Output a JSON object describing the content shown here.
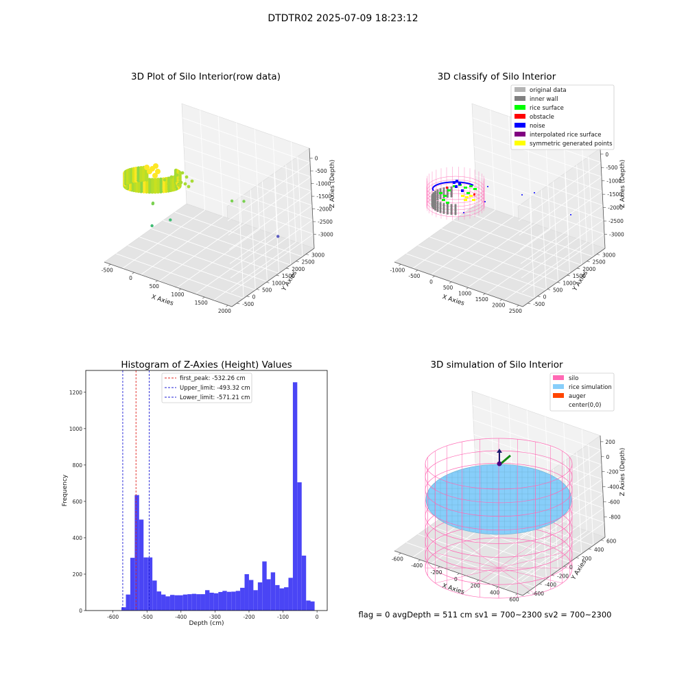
{
  "figure": {
    "suptitle": "DTDTR02 2025-07-09 18:23:12",
    "status_text": "flag = 0     avgDepth = 511 cm  sv1 = 700~2300  sv2 = 700~2300"
  },
  "colors": {
    "hist_bar": "#4a45f5",
    "first_peak": "#e0201b",
    "limit_line": "#1c1cd6",
    "silo": "#ff69b4",
    "rice_sim": "#87cefa",
    "auger": "#ff4500",
    "original": "#b4b4b4",
    "inner_wall": "#808080",
    "rice_surface": "#00ff00",
    "obstacle": "#ff0000",
    "noise": "#0000ff",
    "interpolated": "#800080",
    "symmetric": "#ffff00"
  },
  "chart_data": [
    {
      "type": "scatter3d",
      "title": "3D Plot of Silo Interior(row data)",
      "xlabel": "X Axies",
      "ylabel": "Y Axies",
      "zlabel": "Z Axies (Depth)",
      "xticks": [
        "-500",
        "0",
        "500",
        "1000",
        "1500",
        "2000"
      ],
      "yticks": [
        "-500",
        "0",
        "500",
        "1000",
        "1500",
        "2000",
        "2500",
        "3000"
      ],
      "zticks": [
        "0",
        "-500",
        "-1000",
        "-1500",
        "-2000",
        "-2500",
        "-3000"
      ],
      "xlim": [
        -600,
        2000
      ],
      "ylim": [
        -600,
        3200
      ],
      "zlim": [
        -3200,
        0
      ],
      "colormap": "viridis",
      "points": [
        {
          "x": 900,
          "y": 2000,
          "z": -1700
        },
        {
          "x": 1100,
          "y": 2100,
          "z": -1650
        },
        {
          "x": 1400,
          "y": 2900,
          "z": -3000
        },
        {
          "x": 300,
          "y": 500,
          "z": -1900
        },
        {
          "x": 100,
          "y": 100,
          "z": -2000
        },
        {
          "x": 50,
          "y": 300,
          "z": -1400
        },
        {
          "x": 0,
          "y": 400,
          "z": -1500
        }
      ]
    },
    {
      "type": "scatter3d",
      "title": "3D classify of Silo Interior",
      "xlabel": "X Axies",
      "ylabel": "Y Axies",
      "zlabel": "Z Axies (Depth)",
      "xticks": [
        "-1000",
        "-500",
        "0",
        "500",
        "1000",
        "1500",
        "2000",
        "2500"
      ],
      "yticks": [
        "-500",
        "0",
        "500",
        "1000",
        "1500",
        "2000",
        "2500",
        "3000"
      ],
      "zticks": [
        "0",
        "-500",
        "-1000",
        "-1500",
        "-2000",
        "-2500",
        "-3000"
      ],
      "xlim": [
        -1200,
        2600
      ],
      "ylim": [
        -600,
        3200
      ],
      "zlim": [
        -3200,
        300
      ],
      "legend": [
        {
          "label": "original data",
          "color_key": "original"
        },
        {
          "label": "inner wall",
          "color_key": "inner_wall"
        },
        {
          "label": "rice surface",
          "color_key": "rice_surface"
        },
        {
          "label": "obstacle",
          "color_key": "obstacle"
        },
        {
          "label": "noise",
          "color_key": "noise"
        },
        {
          "label": "interpolated rice surface",
          "color_key": "interpolated"
        },
        {
          "label": "symmetric generated points",
          "color_key": "symmetric"
        }
      ],
      "legend_position": "top-right"
    },
    {
      "type": "bar",
      "title": "Histogram of Z-Axies (Height) Values",
      "xlabel": "Depth (cm)",
      "ylabel": "Frequency",
      "xlim": [
        -680,
        30
      ],
      "ylim": [
        0,
        1320
      ],
      "xticks": [
        -600,
        -500,
        -400,
        -300,
        -200,
        -100,
        0
      ],
      "yticks": [
        0,
        200,
        400,
        600,
        800,
        1000,
        1200
      ],
      "bin_width": 12.9,
      "bins": [
        {
          "x0": -575,
          "v": 18
        },
        {
          "x0": -562,
          "v": 88
        },
        {
          "x0": -549,
          "v": 290
        },
        {
          "x0": -536,
          "v": 635
        },
        {
          "x0": -523,
          "v": 500
        },
        {
          "x0": -510,
          "v": 292
        },
        {
          "x0": -497,
          "v": 292
        },
        {
          "x0": -484,
          "v": 165
        },
        {
          "x0": -471,
          "v": 105
        },
        {
          "x0": -458,
          "v": 88
        },
        {
          "x0": -445,
          "v": 78
        },
        {
          "x0": -432,
          "v": 86
        },
        {
          "x0": -419,
          "v": 84
        },
        {
          "x0": -407,
          "v": 84
        },
        {
          "x0": -394,
          "v": 88
        },
        {
          "x0": -381,
          "v": 90
        },
        {
          "x0": -368,
          "v": 92
        },
        {
          "x0": -355,
          "v": 90
        },
        {
          "x0": -342,
          "v": 90
        },
        {
          "x0": -329,
          "v": 112
        },
        {
          "x0": -316,
          "v": 98
        },
        {
          "x0": -303,
          "v": 95
        },
        {
          "x0": -290,
          "v": 102
        },
        {
          "x0": -278,
          "v": 108
        },
        {
          "x0": -265,
          "v": 103
        },
        {
          "x0": -252,
          "v": 104
        },
        {
          "x0": -239,
          "v": 108
        },
        {
          "x0": -226,
          "v": 125
        },
        {
          "x0": -213,
          "v": 200
        },
        {
          "x0": -200,
          "v": 168
        },
        {
          "x0": -187,
          "v": 112
        },
        {
          "x0": -174,
          "v": 155
        },
        {
          "x0": -161,
          "v": 270
        },
        {
          "x0": -149,
          "v": 172
        },
        {
          "x0": -136,
          "v": 210
        },
        {
          "x0": -123,
          "v": 140
        },
        {
          "x0": -110,
          "v": 122
        },
        {
          "x0": -97,
          "v": 128
        },
        {
          "x0": -84,
          "v": 180
        },
        {
          "x0": -71,
          "v": 1255
        },
        {
          "x0": -58,
          "v": 705
        },
        {
          "x0": -45,
          "v": 302
        },
        {
          "x0": -32,
          "v": 55
        },
        {
          "x0": -20,
          "v": 50
        }
      ],
      "vlines": [
        {
          "label": "first_peak: -532.26 cm",
          "x": -532.26,
          "color_key": "first_peak"
        },
        {
          "label": "Upper_limit: -493.32 cm",
          "x": -493.32,
          "color_key": "limit_line"
        },
        {
          "label": "Lower_limit: -571.21 cm",
          "x": -571.21,
          "color_key": "limit_line"
        }
      ],
      "legend_position": "top-center"
    },
    {
      "type": "surface3d",
      "title": "3D simulation of Silo Interior",
      "xlabel": "X Axies",
      "ylabel": "Y Axies",
      "zlabel": "Z Axies (Depth)",
      "xticks": [
        "-600",
        "-400",
        "-200",
        "0",
        "200",
        "400",
        "600"
      ],
      "yticks": [
        "-600",
        "-400",
        "-200",
        "0",
        "200",
        "400",
        "600"
      ],
      "zticks": [
        "200",
        "0",
        "-200",
        "-400",
        "-600",
        "-800"
      ],
      "xlim": [
        -700,
        700
      ],
      "ylim": [
        -700,
        700
      ],
      "zlim": [
        -1000,
        300
      ],
      "silo_radius": 620,
      "silo_top": 0,
      "silo_bottom": -1000,
      "rice_level": -511,
      "legend": [
        {
          "label": "silo",
          "color_key": "silo"
        },
        {
          "label": "rice simulation",
          "color_key": "rice_sim"
        },
        {
          "label": "auger",
          "color_key": "auger"
        },
        {
          "label": "center(0,0)",
          "color_key": ""
        }
      ],
      "legend_position": "top-right"
    }
  ]
}
